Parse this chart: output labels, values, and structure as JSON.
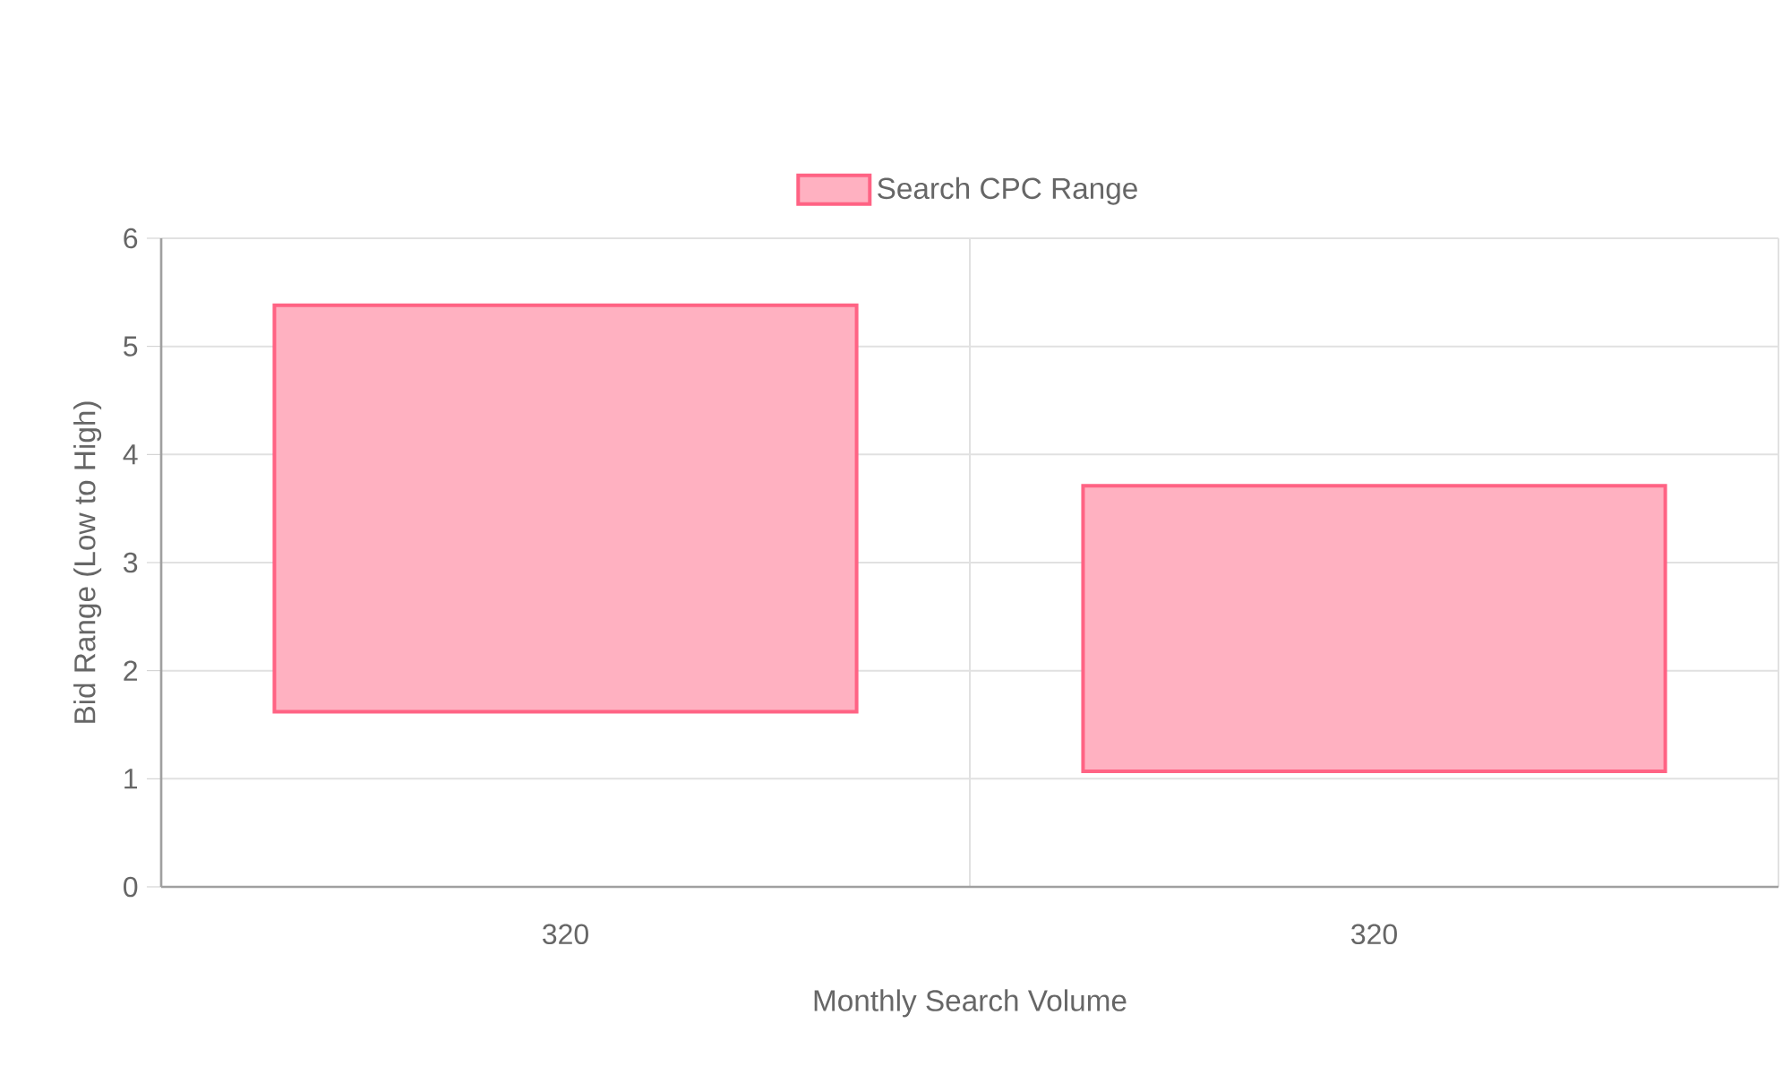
{
  "chart_data": {
    "type": "bar",
    "xlabel": "Monthly Search Volume",
    "ylabel": "Bid Range (Low to High)",
    "categories": [
      "320",
      "320"
    ],
    "series": [
      {
        "name": "Search CPC Range",
        "color": "#ffb1c1",
        "values": [
          3.76,
          2.64
        ],
        "base": [
          1.62,
          1.07
        ]
      }
    ],
    "ylim": [
      0,
      6
    ],
    "yticks": [
      0,
      1,
      2,
      3,
      4,
      5,
      6
    ],
    "grid": true,
    "legend": "top"
  }
}
